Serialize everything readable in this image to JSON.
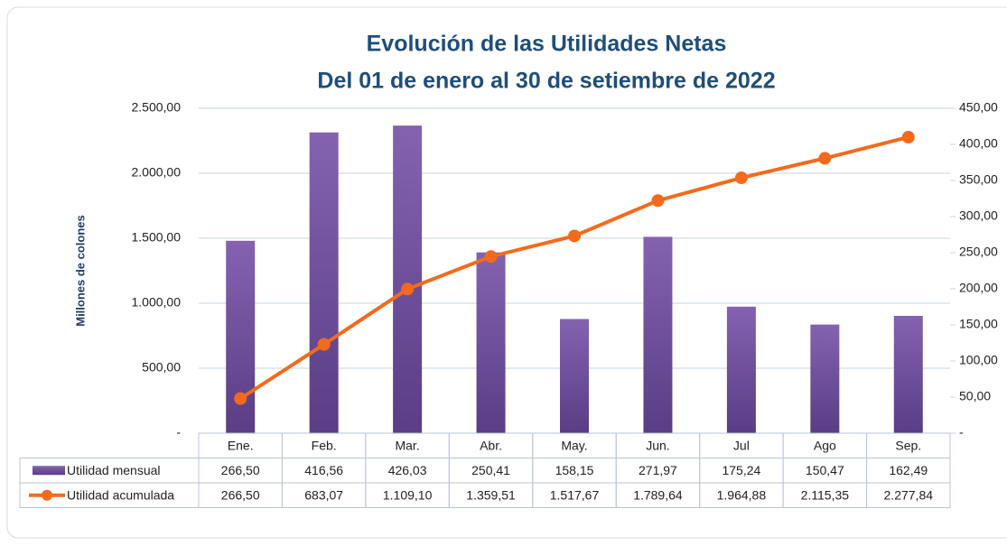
{
  "chart_data": {
    "type": "bar-line",
    "title": "Evolución de las Utilidades Netas",
    "subtitle": "Del 01 de enero al 30 de setiembre de 2022",
    "ylabel": "Millones de colones",
    "categories": [
      "Ene.",
      "Feb.",
      "Mar.",
      "Abr.",
      "May.",
      "Jun.",
      "Jul",
      "Ago",
      "Sep."
    ],
    "series": [
      {
        "name": "Utilidad mensual",
        "type": "bar",
        "axis": "y2",
        "color": "#6f4c9b",
        "values": [
          266.5,
          416.56,
          426.03,
          250.41,
          158.15,
          271.97,
          175.24,
          150.47,
          162.49
        ],
        "value_labels": [
          "266,50",
          "416,56",
          "426,03",
          "250,41",
          "158,15",
          "271,97",
          "175,24",
          "150,47",
          "162,49"
        ]
      },
      {
        "name": "Utilidad acumulada",
        "type": "line",
        "axis": "y",
        "color": "#f26b1d",
        "values": [
          266.5,
          683.07,
          1109.1,
          1359.51,
          1517.67,
          1789.64,
          1964.88,
          2115.35,
          2277.84
        ],
        "value_labels": [
          "266,50",
          "683,07",
          "1.109,10",
          "1.359,51",
          "1.517,67",
          "1.789,64",
          "1.964,88",
          "2.115,35",
          "2.277,84"
        ]
      }
    ],
    "ylim": [
      0,
      2500
    ],
    "yticks": [
      {
        "value": 0,
        "label": "-"
      },
      {
        "value": 500,
        "label": "500,00"
      },
      {
        "value": 1000,
        "label": "1.000,00"
      },
      {
        "value": 1500,
        "label": "1.500,00"
      },
      {
        "value": 2000,
        "label": "2.000,00"
      },
      {
        "value": 2500,
        "label": "2.500,00"
      }
    ],
    "y2lim": [
      0,
      450
    ],
    "y2ticks": [
      {
        "value": 0,
        "label": "-"
      },
      {
        "value": 50,
        "label": "50,00"
      },
      {
        "value": 100,
        "label": "100,00"
      },
      {
        "value": 150,
        "label": "150,00"
      },
      {
        "value": 200,
        "label": "200,00"
      },
      {
        "value": 250,
        "label": "250,00"
      },
      {
        "value": 300,
        "label": "300,00"
      },
      {
        "value": 350,
        "label": "350,00"
      },
      {
        "value": 400,
        "label": "400,00"
      },
      {
        "value": 450,
        "label": "450,00"
      }
    ],
    "grid": true
  }
}
